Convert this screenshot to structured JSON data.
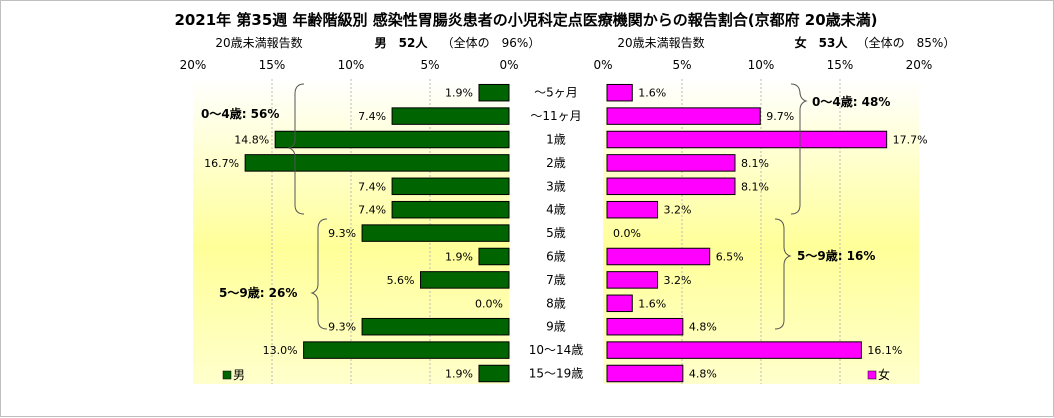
{
  "chart_data": {
    "type": "bar",
    "orientation": "horizontal-butterfly",
    "title": "2021年 第35週 年齢階級別 感染性胃腸炎患者の小児科定点医療機関からの報告割合(京都府 20歳未満)",
    "categories": [
      "～5ヶ月",
      "～11ヶ月",
      "1歳",
      "2歳",
      "3歳",
      "4歳",
      "5歳",
      "6歳",
      "7歳",
      "8歳",
      "9歳",
      "10～14歳",
      "15～19歳"
    ],
    "xlim": [
      0,
      20
    ],
    "x_ticks": [
      "20%",
      "15%",
      "10%",
      "5%",
      "0%"
    ],
    "x_ticks_female": [
      "0%",
      "5%",
      "10%",
      "15%",
      "20%"
    ],
    "grid": "vertical",
    "male": {
      "name": "男",
      "color": "#006400",
      "header_label": "20歳未満報告数",
      "header_count": "男　52人",
      "header_share": "（全体の　96%）",
      "values": [
        1.9,
        7.4,
        14.8,
        16.7,
        7.4,
        7.4,
        9.3,
        1.9,
        5.6,
        0.0,
        9.3,
        13.0,
        1.9
      ],
      "labels": [
        "1.9%",
        "7.4%",
        "14.8%",
        "16.7%",
        "7.4%",
        "7.4%",
        "9.3%",
        "1.9%",
        "5.6%",
        "0.0%",
        "9.3%",
        "13.0%",
        "1.9%"
      ],
      "group_labels": [
        "0～4歳: 56%",
        "5～9歳: 26%"
      ]
    },
    "female": {
      "name": "女",
      "color": "#ff00ff",
      "header_label": "20歳未満報告数",
      "header_count": "女　53人",
      "header_share": "（全体の　85%）",
      "values": [
        1.6,
        9.7,
        17.7,
        8.1,
        8.1,
        3.2,
        0.0,
        6.5,
        3.2,
        1.6,
        4.8,
        16.1,
        4.8
      ],
      "labels": [
        "1.6%",
        "9.7%",
        "17.7%",
        "8.1%",
        "8.1%",
        "3.2%",
        "0.0%",
        "6.5%",
        "3.2%",
        "1.6%",
        "4.8%",
        "16.1%",
        "4.8%"
      ],
      "group_labels": [
        "0～4歳: 48%",
        "5～9歳: 16%"
      ]
    },
    "legend": {
      "position": "bottom-corners"
    }
  }
}
